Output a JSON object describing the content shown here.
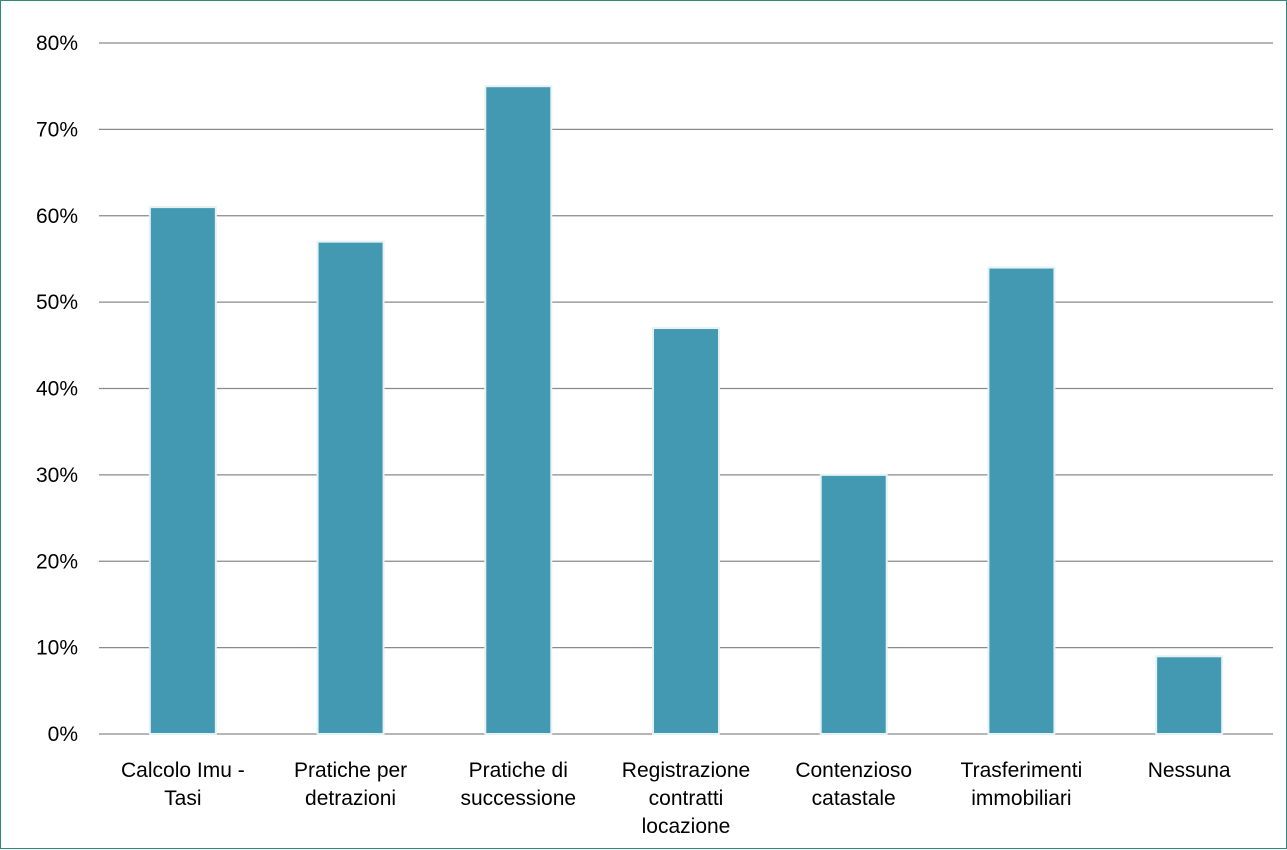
{
  "chart_data": {
    "type": "bar",
    "categories": [
      [
        "Calcolo Imu -",
        "Tasi"
      ],
      [
        "Pratiche per",
        "detrazioni"
      ],
      [
        "Pratiche di",
        "successione"
      ],
      [
        "Registrazione",
        "contratti",
        "locazione"
      ],
      [
        "Contenzioso",
        "catastale"
      ],
      [
        "Trasferimenti",
        "immobiliari"
      ],
      [
        "Nessuna"
      ]
    ],
    "values": [
      61,
      57,
      75,
      47,
      30,
      54,
      9
    ],
    "value_unit": "percent",
    "ylim": [
      0,
      80
    ],
    "yticks": [
      0,
      10,
      20,
      30,
      40,
      50,
      60,
      70,
      80
    ],
    "ytick_labels": [
      "0%",
      "10%",
      "20%",
      "30%",
      "40%",
      "50%",
      "60%",
      "70%",
      "80%"
    ],
    "title": "",
    "xlabel": "",
    "ylabel": "",
    "grid": true,
    "legend": "none",
    "colors": {
      "bar": "#4399B1",
      "bar_edge": "#E6F1F4",
      "grid": "#8A8A8A",
      "frame_border": "#2E8B7A"
    }
  }
}
